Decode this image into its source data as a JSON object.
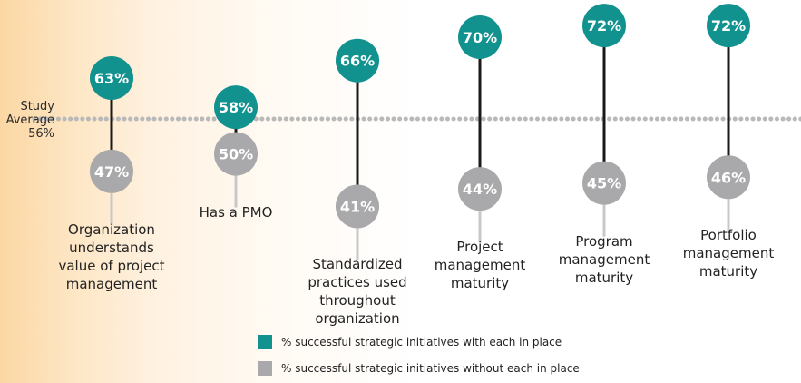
{
  "chart_data": {
    "type": "dot-plot",
    "study_average": {
      "label_lines": [
        "Study",
        "Average",
        "56%"
      ],
      "value": 56
    },
    "categories": [
      {
        "label_lines": [
          "Organization",
          "understands",
          "value of project",
          "management"
        ],
        "with": 63,
        "without": 47
      },
      {
        "label_lines": [
          "Has a PMO"
        ],
        "with": 58,
        "without": 50
      },
      {
        "label_lines": [
          "Standardized",
          "practices used",
          "throughout",
          "organization"
        ],
        "with": 66,
        "without": 41
      },
      {
        "label_lines": [
          "Project",
          "management",
          "maturity"
        ],
        "with": 70,
        "without": 44
      },
      {
        "label_lines": [
          "Program",
          "management",
          "maturity"
        ],
        "with": 72,
        "without": 45
      },
      {
        "label_lines": [
          "Portfolio",
          "management",
          "maturity"
        ],
        "with": 72,
        "without": 46
      }
    ],
    "series": [
      {
        "key": "with",
        "name": "% successful strategic initiatives with each in place",
        "color": "#12928f"
      },
      {
        "key": "without",
        "name": "% successful strategic initiatives without each in place",
        "color": "#a9a9ab"
      }
    ],
    "colors": {
      "connector": "#1a1a1a",
      "average_line": "#b9b9b9",
      "stem": "#c8c8c8"
    }
  }
}
